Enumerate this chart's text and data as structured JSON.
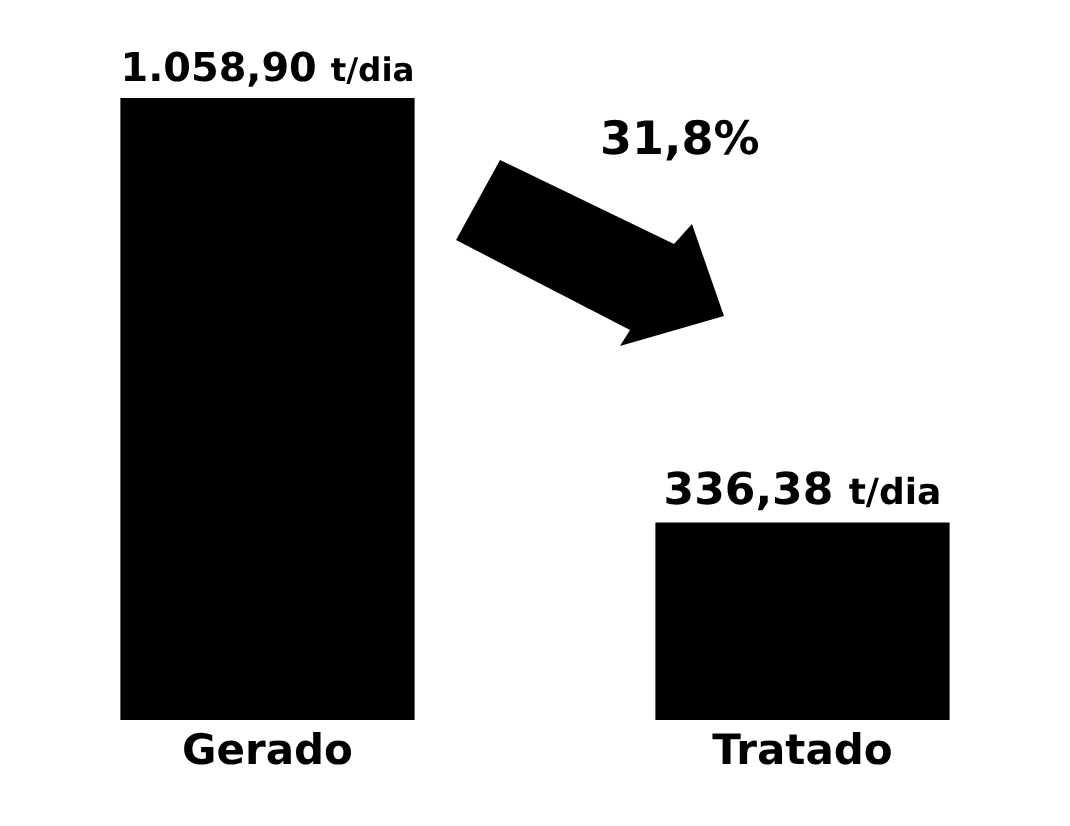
{
  "chart_data": {
    "type": "bar",
    "categories": [
      "Gerado",
      "Tratado"
    ],
    "values": [
      1058.9,
      336.38
    ],
    "value_labels": [
      "1.058,90 t/dia",
      "336,38 t/dia"
    ],
    "color": "#000000",
    "annotations": [
      "31,8%"
    ]
  }
}
